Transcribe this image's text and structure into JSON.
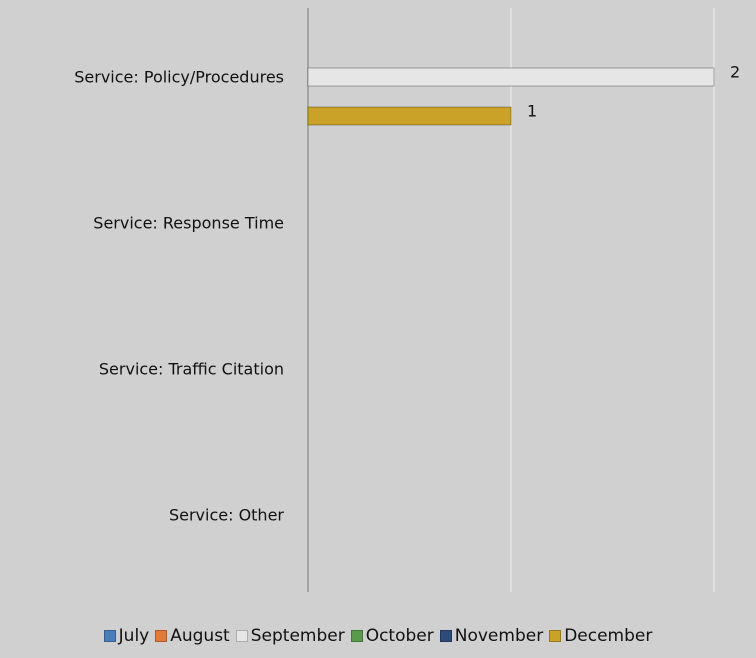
{
  "chart_data": {
    "type": "hbar",
    "categories": [
      "Service: Policy/Procedures",
      "Service: Response Time",
      "Service: Traffic Citation",
      "Service: Other"
    ],
    "series": [
      {
        "name": "July",
        "color": "#4a7ebb",
        "values": [
          null,
          null,
          null,
          null
        ]
      },
      {
        "name": "August",
        "color": "#e07b39",
        "values": [
          null,
          null,
          null,
          null
        ]
      },
      {
        "name": "September",
        "color": "#e6e6e6",
        "values": [
          2,
          null,
          null,
          null
        ]
      },
      {
        "name": "October",
        "color": "#5a9a4a",
        "values": [
          null,
          null,
          null,
          null
        ]
      },
      {
        "name": "November",
        "color": "#2e4a7a",
        "values": [
          null,
          null,
          null,
          null
        ]
      },
      {
        "name": "December",
        "color": "#c9a227",
        "values": [
          1,
          null,
          null,
          null
        ]
      }
    ],
    "xlim": [
      0,
      2
    ],
    "xticks": [
      0,
      1,
      2
    ],
    "grid": true,
    "tick_labels": false,
    "legend": "bottom"
  }
}
